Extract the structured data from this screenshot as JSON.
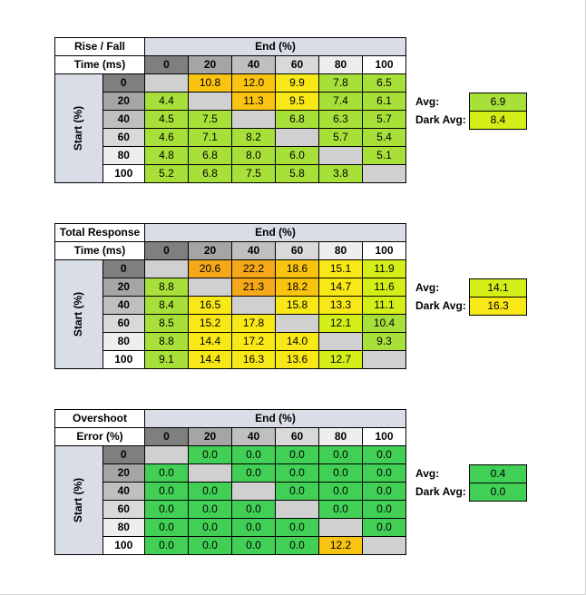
{
  "colors": {
    "green": "#41d055",
    "light_green": "#a8e03a",
    "yellow_green": "#d4ee18",
    "yellow": "#f8e817",
    "amber": "#f8c40f",
    "orange": "#f4a81a",
    "diagonal": "#d0d0d0",
    "header_blue": "#d9dde6"
  },
  "axes": {
    "end_label": "End (%)",
    "start_label": "Start (%)"
  },
  "chart_data": [
    {
      "type": "heatmap",
      "title_line1": "Rise / Fall",
      "title_line2": "Time (ms)",
      "x": [
        "0",
        "20",
        "40",
        "60",
        "80",
        "100"
      ],
      "y": [
        "0",
        "20",
        "40",
        "60",
        "80",
        "100"
      ],
      "values": [
        [
          null,
          "10.8",
          "12.0",
          "9.9",
          "7.8",
          "6.5"
        ],
        [
          "4.4",
          null,
          "11.3",
          "9.5",
          "7.4",
          "6.1"
        ],
        [
          "4.5",
          "7.5",
          null,
          "6.8",
          "6.3",
          "5.7"
        ],
        [
          "4.6",
          "7.1",
          "8.2",
          null,
          "5.7",
          "5.4"
        ],
        [
          "4.8",
          "6.8",
          "8.0",
          "6.0",
          null,
          "5.1"
        ],
        [
          "5.2",
          "6.8",
          "7.5",
          "5.8",
          "3.8",
          null
        ]
      ],
      "avg_label": "Avg:",
      "avg": "6.9",
      "dark_avg_label": "Dark Avg:",
      "dark_avg": "8.4"
    },
    {
      "type": "heatmap",
      "title_line1": "Total Response",
      "title_line2": "Time (ms)",
      "x": [
        "0",
        "20",
        "40",
        "60",
        "80",
        "100"
      ],
      "y": [
        "0",
        "20",
        "40",
        "60",
        "80",
        "100"
      ],
      "values": [
        [
          null,
          "20.6",
          "22.2",
          "18.6",
          "15.1",
          "11.9"
        ],
        [
          "8.8",
          null,
          "21.3",
          "18.2",
          "14.7",
          "11.6"
        ],
        [
          "8.4",
          "16.5",
          null,
          "15.8",
          "13.3",
          "11.1"
        ],
        [
          "8.5",
          "15.2",
          "17.8",
          null,
          "12.1",
          "10.4"
        ],
        [
          "8.8",
          "14.4",
          "17.2",
          "14.0",
          null,
          "9.3"
        ],
        [
          "9.1",
          "14.4",
          "16.3",
          "13.6",
          "12.7",
          null
        ]
      ],
      "avg_label": "Avg:",
      "avg": "14.1",
      "dark_avg_label": "Dark Avg:",
      "dark_avg": "16.3"
    },
    {
      "type": "heatmap",
      "title_line1": "Overshoot",
      "title_line2": "Error (%)",
      "x": [
        "0",
        "20",
        "40",
        "60",
        "80",
        "100"
      ],
      "y": [
        "0",
        "20",
        "40",
        "60",
        "80",
        "100"
      ],
      "values": [
        [
          null,
          "0.0",
          "0.0",
          "0.0",
          "0.0",
          "0.0"
        ],
        [
          "0.0",
          null,
          "0.0",
          "0.0",
          "0.0",
          "0.0"
        ],
        [
          "0.0",
          "0.0",
          null,
          "0.0",
          "0.0",
          "0.0"
        ],
        [
          "0.0",
          "0.0",
          "0.0",
          null,
          "0.0",
          "0.0"
        ],
        [
          "0.0",
          "0.0",
          "0.0",
          "0.0",
          null,
          "0.0"
        ],
        [
          "0.0",
          "0.0",
          "0.0",
          "0.0",
          "12.2",
          null
        ]
      ],
      "avg_label": "Avg:",
      "avg": "0.4",
      "dark_avg_label": "Dark Avg:",
      "dark_avg": "0.0"
    }
  ]
}
